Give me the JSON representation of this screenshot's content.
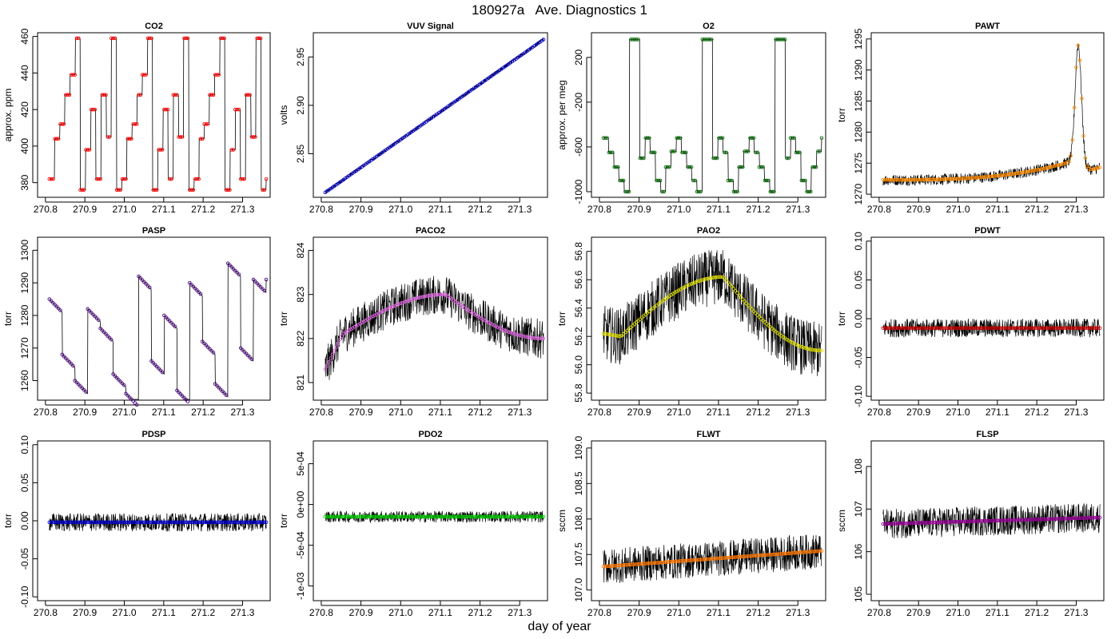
{
  "figure": {
    "title": "180927a   Ave. Diagnostics 1",
    "xlabel": "day of year"
  },
  "chart_data": [
    {
      "type": "line",
      "title": "CO2",
      "ylabel": "approx. ppm",
      "marker_color": "#ff0000",
      "xlim": [
        270.78,
        271.37
      ],
      "ylim": [
        372,
        462
      ],
      "xticks": [
        "270.8",
        "270.9",
        "271.0",
        "271.1",
        "271.2",
        "271.3"
      ],
      "yticks": [
        "380",
        "400",
        "420",
        "440",
        "460"
      ],
      "x_range": [
        270.81,
        271.36
      ],
      "noise": 0,
      "profile": "square",
      "levels": [
        382,
        404,
        412,
        428,
        439,
        459,
        376,
        398,
        420,
        382,
        428,
        405,
        459,
        376
      ],
      "y": []
    },
    {
      "type": "line",
      "title": "VUV Signal",
      "ylabel": "volts",
      "marker_color": "#0000cc",
      "xlim": [
        270.78,
        271.37
      ],
      "ylim": [
        2.805,
        2.975
      ],
      "xticks": [
        "270.8",
        "270.9",
        "271.0",
        "271.1",
        "271.2",
        "271.3"
      ],
      "yticks": [
        "2.85",
        "2.90",
        "2.95"
      ],
      "x_range": [
        270.81,
        271.36
      ],
      "noise": 0.0015,
      "profile": "linear",
      "levels": [
        2.81,
        2.968
      ],
      "y": []
    },
    {
      "type": "line",
      "title": "O2",
      "ylabel": "approx. per meg",
      "marker_color": "#006400",
      "xlim": [
        270.78,
        271.37
      ],
      "ylim": [
        -1050,
        420
      ],
      "xticks": [
        "270.8",
        "270.9",
        "271.0",
        "271.1",
        "271.2",
        "271.3"
      ],
      "yticks": [
        "-1000",
        "-600",
        "-200",
        "200"
      ],
      "x_range": [
        270.81,
        271.36
      ],
      "noise": 0,
      "profile": "square",
      "levels": [
        -520,
        -650,
        -780,
        -900,
        -1000,
        360,
        360,
        -700,
        -520,
        -650,
        -900,
        -1000,
        -780,
        -640
      ],
      "y": []
    },
    {
      "type": "line",
      "title": "PAWT",
      "ylabel": "torr",
      "marker_color": "#ff8c00",
      "xlim": [
        270.78,
        271.37
      ],
      "ylim": [
        1269.5,
        1296
      ],
      "xticks": [
        "270.8",
        "270.9",
        "271.0",
        "271.1",
        "271.2",
        "271.3"
      ],
      "yticks": [
        "1270",
        "1275",
        "1280",
        "1285",
        "1290",
        "1295"
      ],
      "x_range": [
        270.81,
        271.36
      ],
      "noise": 0.9,
      "profile": "pawt",
      "levels": [
        1272.3,
        1294
      ],
      "y": []
    },
    {
      "type": "line",
      "title": "PASP",
      "ylabel": "torr",
      "marker_color": "#4b0082",
      "xlim": [
        270.78,
        271.37
      ],
      "ylim": [
        1254,
        1304
      ],
      "xticks": [
        "270.8",
        "270.9",
        "271.0",
        "271.1",
        "271.2",
        "271.3"
      ],
      "yticks": [
        "1260",
        "1270",
        "1280",
        "1290",
        "1300"
      ],
      "x_range": [
        270.81,
        271.36
      ],
      "noise": 0,
      "profile": "sawtooth",
      "levels": [
        1285,
        1268,
        1260,
        1282,
        1276,
        1262,
        1256,
        1292,
        1266,
        1280,
        1257,
        1290,
        1272,
        1259,
        1296,
        1270,
        1291
      ],
      "y": []
    },
    {
      "type": "line",
      "title": "PACO2",
      "ylabel": "torr",
      "marker_color": "#dd66dd",
      "xlim": [
        270.78,
        271.37
      ],
      "ylim": [
        820.6,
        824.3
      ],
      "xticks": [
        "270.8",
        "270.9",
        "271.0",
        "271.1",
        "271.2",
        "271.3"
      ],
      "yticks": [
        "821",
        "822",
        "823",
        "824"
      ],
      "x_range": [
        270.81,
        271.36
      ],
      "noise": 0.45,
      "profile": "hump",
      "levels": [
        821.3,
        822.1,
        823.0,
        822.0
      ],
      "y": []
    },
    {
      "type": "line",
      "title": "PAO2",
      "ylabel": "torr",
      "marker_color": "#dddd00",
      "xlim": [
        270.78,
        271.37
      ],
      "ylim": [
        55.75,
        56.9
      ],
      "xticks": [
        "270.8",
        "270.9",
        "271.0",
        "271.1",
        "271.2",
        "271.3"
      ],
      "yticks": [
        "55.8",
        "56.0",
        "56.2",
        "56.4",
        "56.6",
        "56.8"
      ],
      "x_range": [
        270.81,
        271.36
      ],
      "noise": 0.2,
      "profile": "hump",
      "levels": [
        56.22,
        56.2,
        56.62,
        56.1
      ],
      "y": []
    },
    {
      "type": "line",
      "title": "PDWT",
      "ylabel": "torr",
      "marker_color": "#cc0000",
      "xlim": [
        270.78,
        271.37
      ],
      "ylim": [
        -0.105,
        0.105
      ],
      "xticks": [
        "270.8",
        "270.9",
        "271.0",
        "271.1",
        "271.2",
        "271.3"
      ],
      "yticks": [
        "-0.10",
        "-0.05",
        "0.00",
        "0.05",
        "0.10"
      ],
      "x_range": [
        270.81,
        271.36
      ],
      "noise": 0.012,
      "profile": "flat",
      "levels": [
        -0.012
      ],
      "y": []
    },
    {
      "type": "line",
      "title": "PDSP",
      "ylabel": "torr",
      "marker_color": "#0000cc",
      "xlim": [
        270.78,
        271.37
      ],
      "ylim": [
        -0.105,
        0.105
      ],
      "xticks": [
        "270.8",
        "270.9",
        "271.0",
        "271.1",
        "271.2",
        "271.3"
      ],
      "yticks": [
        "-0.10",
        "-0.05",
        "0.00",
        "0.05",
        "0.10"
      ],
      "x_range": [
        270.81,
        271.36
      ],
      "noise": 0.012,
      "profile": "flat",
      "levels": [
        -0.002
      ],
      "y": []
    },
    {
      "type": "line",
      "title": "PDO2",
      "ylabel": "torr",
      "marker_color": "#00cc00",
      "xlim": [
        270.78,
        271.37
      ],
      "ylim": [
        -0.00118,
        0.00078
      ],
      "xticks": [
        "270.8",
        "270.9",
        "271.0",
        "271.1",
        "271.2",
        "271.3"
      ],
      "yticks": [
        "-1e-03",
        "-5e-04",
        "0e+00",
        "5e-04"
      ],
      "x_range": [
        270.81,
        271.36
      ],
      "noise": 7e-05,
      "profile": "flat",
      "levels": [
        -0.00015
      ],
      "y": []
    },
    {
      "type": "line",
      "title": "FLWT",
      "ylabel": "sccm",
      "marker_color": "#ff7700",
      "xlim": [
        270.78,
        271.37
      ],
      "ylim": [
        106.85,
        109.1
      ],
      "xticks": [
        "270.8",
        "270.9",
        "271.0",
        "271.1",
        "271.2",
        "271.3"
      ],
      "yticks": [
        "107.0",
        "107.5",
        "108.0",
        "108.5",
        "109.0"
      ],
      "x_range": [
        270.81,
        271.36
      ],
      "noise": 0.25,
      "profile": "linear",
      "levels": [
        107.33,
        107.55
      ],
      "y": []
    },
    {
      "type": "line",
      "title": "FLSP",
      "ylabel": "sccm",
      "marker_color": "#990099",
      "xlim": [
        270.78,
        271.37
      ],
      "ylim": [
        104.85,
        108.6
      ],
      "xticks": [
        "270.8",
        "270.9",
        "271.0",
        "271.1",
        "271.2",
        "271.3"
      ],
      "yticks": [
        "105",
        "106",
        "107",
        "108"
      ],
      "x_range": [
        270.81,
        271.36
      ],
      "noise": 0.35,
      "profile": "linear",
      "levels": [
        106.65,
        106.8
      ],
      "y": []
    }
  ]
}
